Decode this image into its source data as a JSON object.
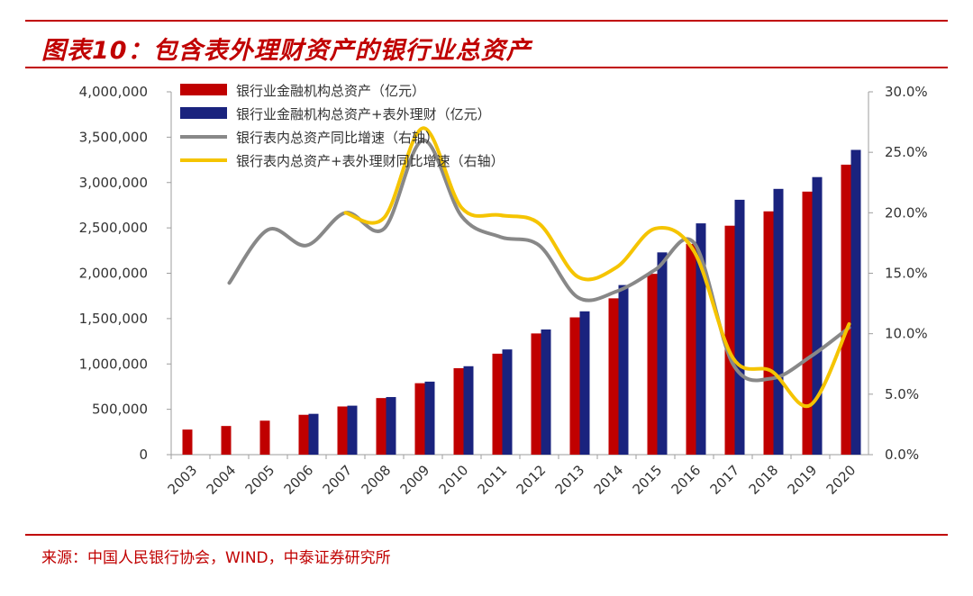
{
  "title": "图表10：包含表外理财资产的银行业总资产",
  "source": "来源：中国人民银行协会，WIND，中泰证券研究所",
  "colors": {
    "accent": "#c00000",
    "bar1": "#c00000",
    "bar2": "#1a237e",
    "line1": "#888888",
    "line2": "#f5c400"
  },
  "chart_data": {
    "type": "bar",
    "categories": [
      "2003",
      "2004",
      "2005",
      "2006",
      "2007",
      "2008",
      "2009",
      "2010",
      "2011",
      "2012",
      "2013",
      "2014",
      "2015",
      "2016",
      "2017",
      "2018",
      "2019",
      "2020"
    ],
    "left_ticks": [
      "0",
      "500,000",
      "1,000,000",
      "1,500,000",
      "2,000,000",
      "2,500,000",
      "3,000,000",
      "3,500,000",
      "4,000,000"
    ],
    "right_ticks": [
      "0.0%",
      "5.0%",
      "10.0%",
      "15.0%",
      "20.0%",
      "25.0%",
      "30.0%"
    ],
    "ylim": [
      0,
      4000000
    ],
    "y2lim": [
      0,
      30
    ],
    "legend": "top-left",
    "series": [
      {
        "name": "银行业金融机构总资产（亿元）",
        "kind": "bar",
        "axis": "left",
        "values": [
          276584,
          315990,
          374697,
          439500,
          531160,
          623913,
          787691,
          953053,
          1113093,
          1336224,
          1513547,
          1723355,
          1993454,
          2323453,
          2524040,
          2682401,
          2900000,
          3197000
        ]
      },
      {
        "name": "银行业金融机构总资产+表外理财（亿元）",
        "kind": "bar",
        "axis": "left",
        "values": [
          null,
          null,
          null,
          450000,
          540000,
          635000,
          805000,
          975000,
          1160000,
          1380000,
          1580000,
          1870000,
          2230000,
          2550000,
          2810000,
          2930000,
          3060000,
          3360000
        ]
      },
      {
        "name": "银行表内总资产同比增速（右轴）",
        "kind": "line",
        "axis": "right",
        "values": [
          null,
          14.2,
          18.6,
          17.3,
          20.0,
          18.7,
          26.0,
          19.7,
          18.0,
          17.3,
          13.0,
          13.5,
          15.3,
          17.5,
          7.5,
          6.3,
          8.1,
          10.5
        ]
      },
      {
        "name": "银行表内总资产+表外理财同比增速（右轴）",
        "kind": "line",
        "axis": "right",
        "values": [
          null,
          null,
          null,
          null,
          20.0,
          19.6,
          27.0,
          20.4,
          19.8,
          19.1,
          14.7,
          15.5,
          18.7,
          16.8,
          8.0,
          6.9,
          4.1,
          10.8
        ]
      }
    ]
  }
}
